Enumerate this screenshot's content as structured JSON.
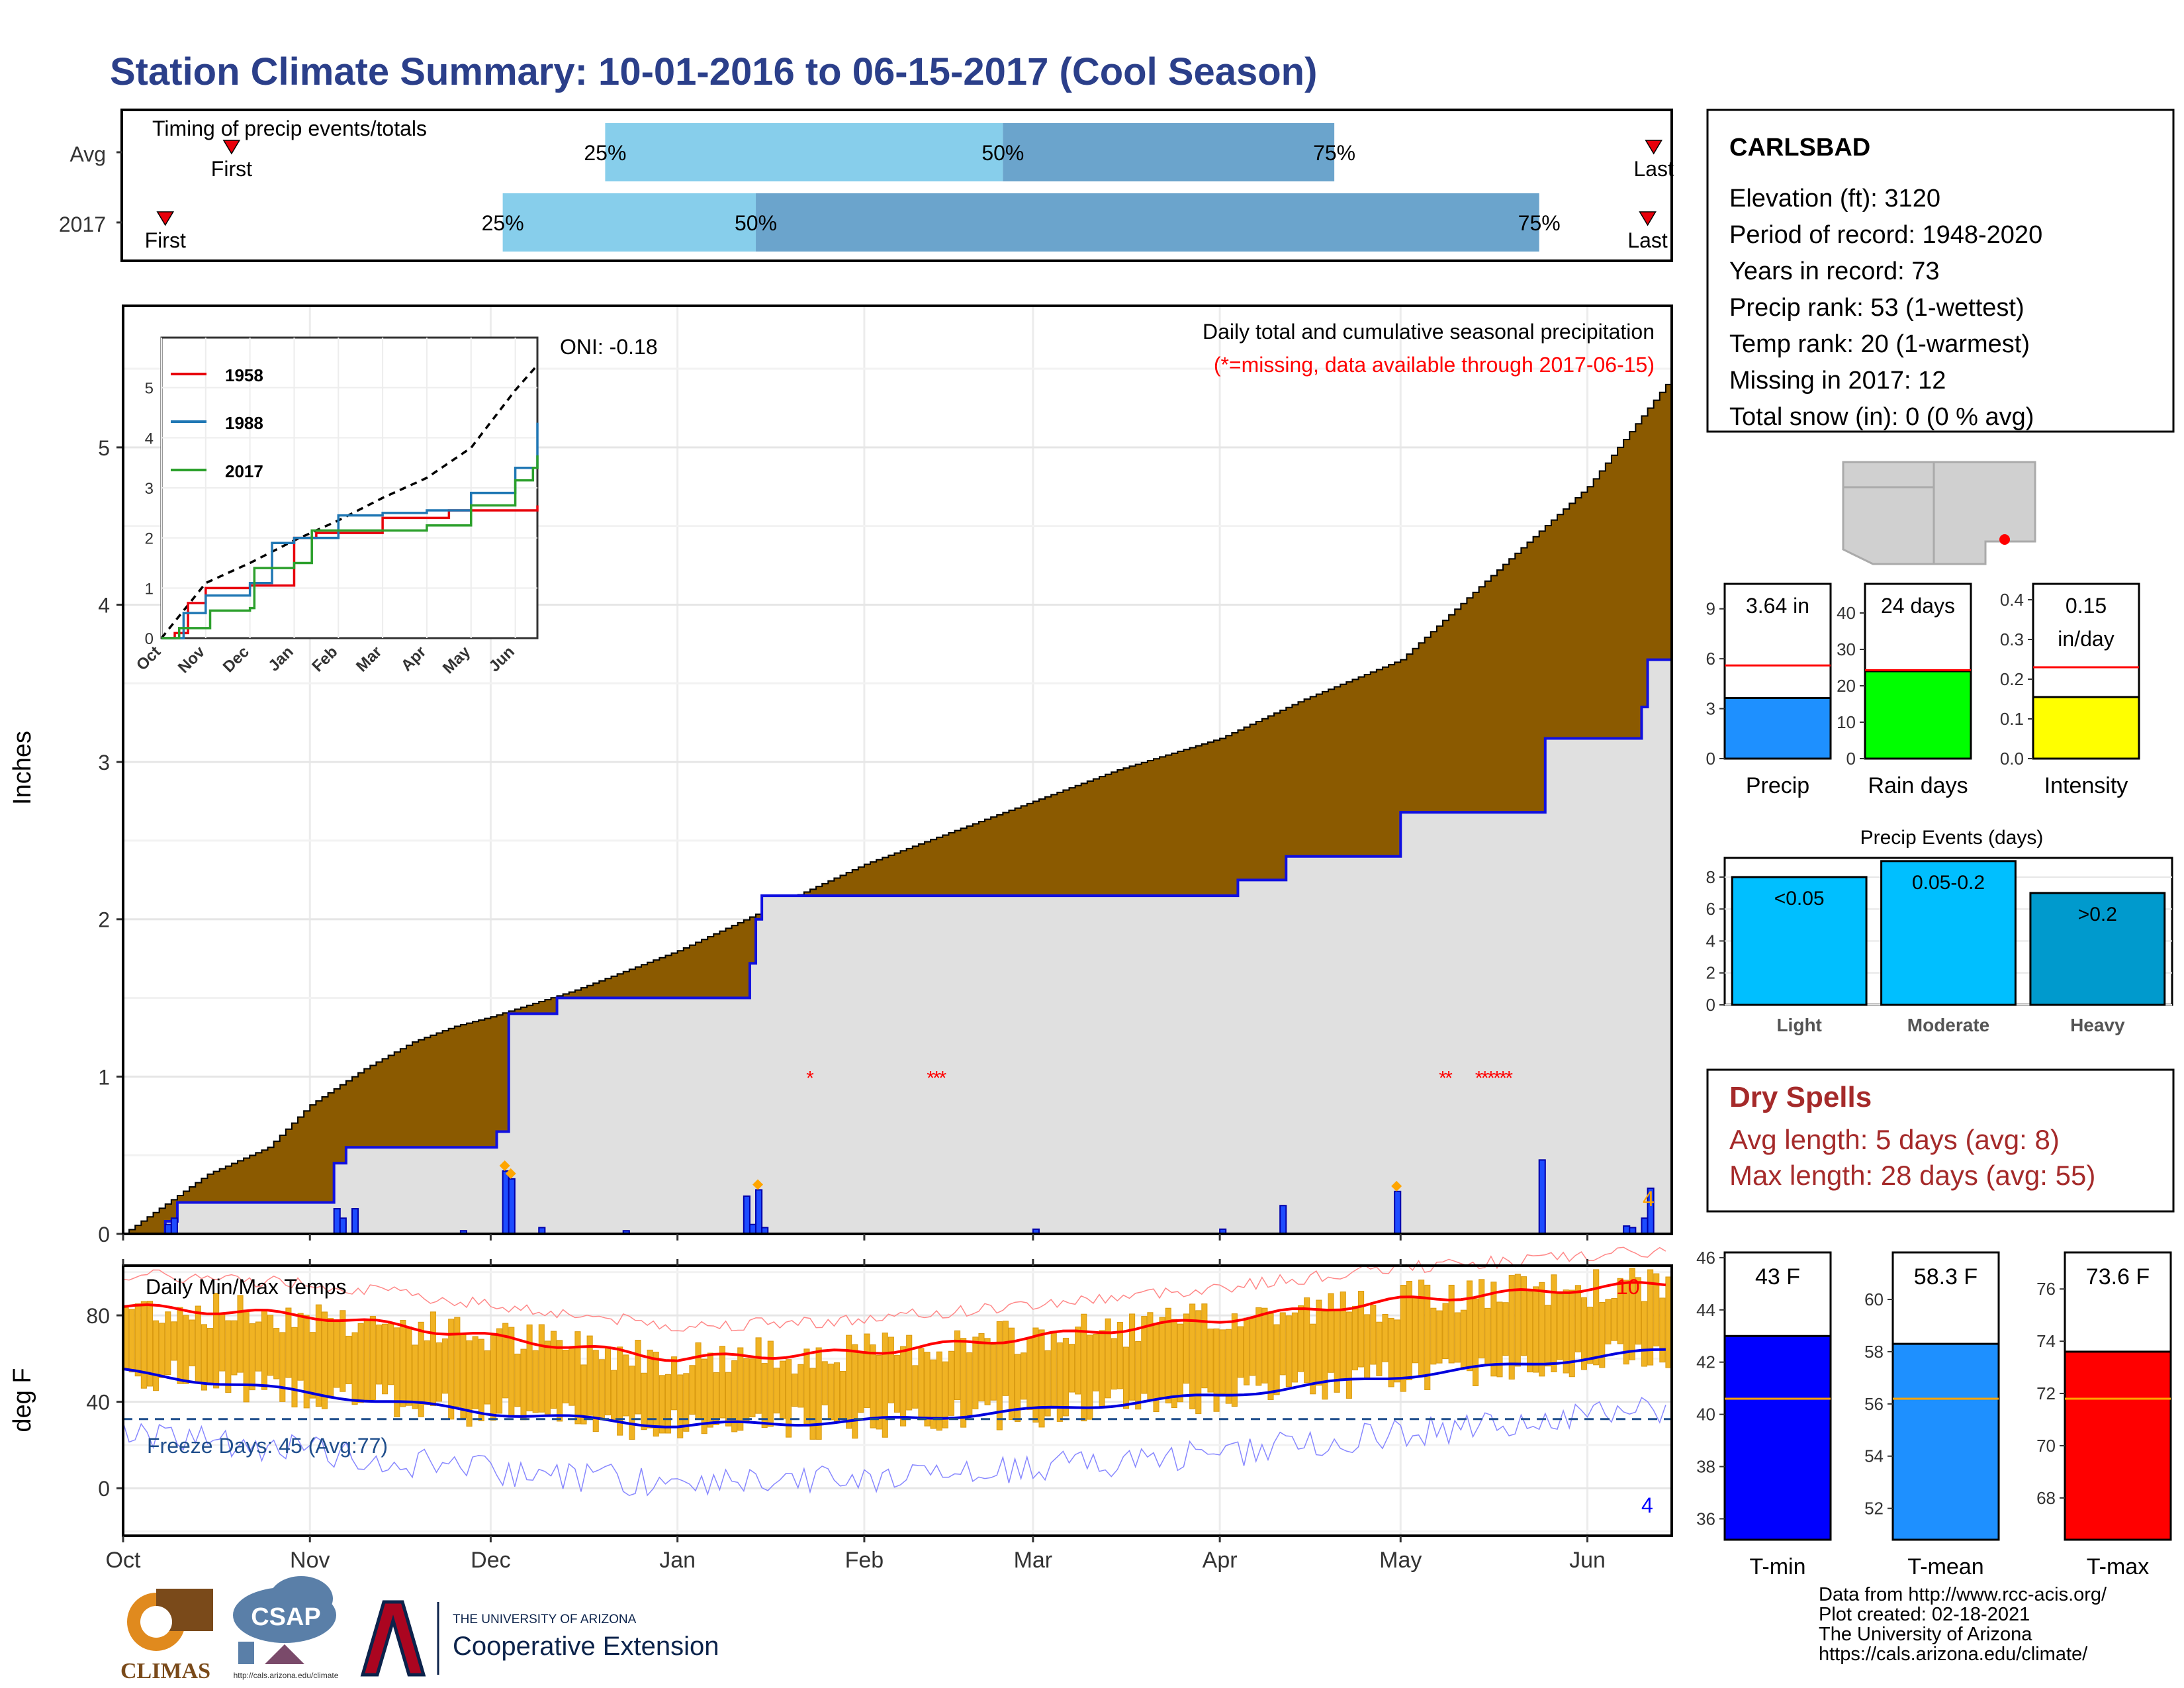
{
  "page": {
    "title": "Station Climate Summary: 10-01-2016 to 06-15-2017 (Cool Season)"
  },
  "timing_panel": {
    "title": "Timing of precip events/totals",
    "row_labels": [
      "Avg",
      "2017"
    ],
    "first_label": "First",
    "last_label": "Last",
    "pct_labels": [
      "25%",
      "50%",
      "75%"
    ],
    "avg": {
      "first": "2016-10-19",
      "p25": "2016-12-20",
      "p50": "2017-02-24",
      "p75": "2017-04-20",
      "last": "2017-06-12"
    },
    "y2017": {
      "first": "2016-10-08",
      "p25": "2016-12-03",
      "p50": "2017-01-14",
      "p75": "2017-05-24",
      "last": "2017-06-11"
    },
    "colors": {
      "light": "#87ceeb",
      "dark": "#6ba4cc",
      "marker": "#e8000b"
    }
  },
  "station": {
    "name": "CARLSBAD",
    "lines": [
      "Elevation (ft): 3120",
      "Period of record: 1948-2020",
      "Years in record: 73",
      "Precip rank: 53 (1-wettest)",
      "Temp rank: 20 (1-warmest)",
      "Missing in 2017: 12",
      "Total snow (in): 0 (0 % avg)"
    ]
  },
  "precip_panel": {
    "ylabel": "Inches",
    "oni": "ONI: -0.18",
    "caption": "Daily total and cumulative seasonal precipitation",
    "missing_note": "(*=missing, data available through 2017-06-15)",
    "count_label": "4",
    "colors": {
      "avg_fill": "#8b5a00",
      "obs_fill": "#e0e0e0",
      "obs_line": "#1010e0",
      "missing": "#ff0000",
      "marker": "#ffa500"
    }
  },
  "inset": {
    "legend": [
      {
        "name": "1958",
        "color": "#e8000b"
      },
      {
        "name": "1988",
        "color": "#1f77b4"
      },
      {
        "name": "2017",
        "color": "#2ca02c"
      }
    ],
    "x_ticks": [
      "Oct",
      "Nov",
      "Dec",
      "Jan",
      "Feb",
      "Mar",
      "Apr",
      "May",
      "Jun"
    ],
    "y_ticks": [
      "0",
      "1",
      "2",
      "3",
      "4",
      "5"
    ]
  },
  "temp_panel": {
    "ylabel": "deg F",
    "title": "Daily Min/Max Temps",
    "freeze_label": "Freeze Days: 45 (Avg:77)",
    "count_top": "10",
    "count_bottom": "4",
    "colors": {
      "bar": "#f0b323",
      "max_avg": "#ff0000",
      "min_avg": "#0000dd",
      "max_rec": "#ff8888",
      "min_rec": "#8888ff",
      "freeze": "#1f4e8c"
    }
  },
  "month_ticks": [
    "Oct",
    "Nov",
    "Dec",
    "Jan",
    "Feb",
    "Mar",
    "Apr",
    "May",
    "Jun"
  ],
  "mini_bars": [
    {
      "value_label": "3.64 in",
      "name": "Precip",
      "value": 3.64,
      "avg": 5.6,
      "ymax": 10.5,
      "ticks": [
        "0",
        "3",
        "6",
        "9"
      ],
      "tick_vals": [
        0,
        3,
        6,
        9
      ],
      "color": "#1e90ff"
    },
    {
      "value_label": "24 days",
      "name": "Rain days",
      "value": 24,
      "avg": 24.3,
      "ymax": 48,
      "ticks": [
        "0",
        "10",
        "20",
        "30",
        "40"
      ],
      "tick_vals": [
        0,
        10,
        20,
        30,
        40
      ],
      "color": "#00ff00"
    },
    {
      "value_label": "0.15\nin/day",
      "name": "Intensity",
      "value": 0.155,
      "avg": 0.23,
      "ymax": 0.44,
      "ticks": [
        "0.0",
        "0.1",
        "0.2",
        "0.3",
        "0.4"
      ],
      "tick_vals": [
        0,
        0.1,
        0.2,
        0.3,
        0.4
      ],
      "color": "#ffff00"
    }
  ],
  "precip_events": {
    "title": "Precip Events (days)",
    "categories": [
      "Light",
      "Moderate",
      "Heavy"
    ],
    "bar_labels": [
      "<0.05",
      "0.05-0.2",
      ">0.2"
    ],
    "values": [
      8,
      9,
      7
    ],
    "colors": [
      "#00bfff",
      "#00bfff",
      "#009acd"
    ],
    "ticks": [
      "0",
      "2",
      "4",
      "6",
      "8"
    ],
    "tick_vals": [
      0,
      2,
      4,
      6,
      8
    ],
    "ymax": 9.2
  },
  "dry_spells": {
    "title": "Dry Spells",
    "lines": [
      "Avg length: 5 days (avg: 8)",
      "Max length: 28 days (avg: 55)"
    ],
    "color": "#a52a2a"
  },
  "temp_bars": [
    {
      "value_label": "43 F",
      "name": "T-min",
      "value": 43.0,
      "avg": 40.6,
      "ymin": 35.2,
      "ymax": 46.2,
      "ticks": [
        "36",
        "38",
        "40",
        "42",
        "44",
        "46"
      ],
      "tick_vals": [
        36,
        38,
        40,
        42,
        44,
        46
      ],
      "color": "#0000ff"
    },
    {
      "value_label": "58.3 F",
      "name": "T-mean",
      "value": 58.3,
      "avg": 56.2,
      "ymin": 50.8,
      "ymax": 61.8,
      "ticks": [
        "52",
        "54",
        "56",
        "58",
        "60"
      ],
      "tick_vals": [
        52,
        54,
        56,
        58,
        60
      ],
      "color": "#1e90ff"
    },
    {
      "value_label": "73.6 F",
      "name": "T-max",
      "value": 73.6,
      "avg": 71.8,
      "ymin": 66.4,
      "ymax": 77.4,
      "ticks": [
        "68",
        "70",
        "72",
        "74",
        "76"
      ],
      "tick_vals": [
        68,
        70,
        72,
        74,
        76
      ],
      "color": "#ff0000"
    }
  ],
  "footer": {
    "credits": [
      "Data from http://www.rcc-acis.org/",
      "Plot created: 02-18-2021",
      "The University of Arizona",
      "https://cals.arizona.edu/climate/"
    ],
    "logos": {
      "climas": "CLIMAS",
      "csap": "CSAP",
      "csap_url": "http://cals.arizona.edu/climate",
      "ua_small": "THE UNIVERSITY OF ARIZONA",
      "ua_big": "Cooperative Extension"
    }
  },
  "chart_data": [
    {
      "type": "area",
      "title": "Daily total and cumulative seasonal precipitation",
      "ylabel": "Inches",
      "ylim": [
        0,
        5.9
      ],
      "x_range": [
        "2016-10-01",
        "2017-06-15"
      ],
      "grid": true,
      "series": [
        {
          "name": "avg",
          "points": [
            [
              "2016-10-01",
              0.0
            ],
            [
              "2016-10-15",
              0.38
            ],
            [
              "2016-10-25",
              0.55
            ],
            [
              "2016-11-01",
              0.82
            ],
            [
              "2016-11-10",
              1.05
            ],
            [
              "2016-11-18",
              1.22
            ],
            [
              "2016-11-25",
              1.32
            ],
            [
              "2016-12-01",
              1.38
            ],
            [
              "2016-12-15",
              1.55
            ],
            [
              "2017-01-01",
              1.8
            ],
            [
              "2017-01-15",
              2.05
            ],
            [
              "2017-02-01",
              2.35
            ],
            [
              "2017-02-15",
              2.55
            ],
            [
              "2017-03-01",
              2.75
            ],
            [
              "2017-03-15",
              2.95
            ],
            [
              "2017-04-01",
              3.15
            ],
            [
              "2017-04-15",
              3.4
            ],
            [
              "2017-05-01",
              3.65
            ],
            [
              "2017-05-15",
              4.15
            ],
            [
              "2017-06-01",
              4.75
            ],
            [
              "2017-06-15",
              5.45
            ]
          ]
        },
        {
          "name": "2017",
          "points": [
            [
              "2016-10-01",
              0.0
            ],
            [
              "2016-10-08",
              0.08
            ],
            [
              "2016-10-10",
              0.2
            ],
            [
              "2016-11-03",
              0.2
            ],
            [
              "2016-11-05",
              0.45
            ],
            [
              "2016-11-07",
              0.55
            ],
            [
              "2016-12-01",
              0.55
            ],
            [
              "2016-12-02",
              0.65
            ],
            [
              "2016-12-04",
              1.4
            ],
            [
              "2016-12-12",
              1.5
            ],
            [
              "2017-01-13",
              1.72
            ],
            [
              "2017-01-14",
              2.0
            ],
            [
              "2017-01-15",
              2.15
            ],
            [
              "2017-02-22",
              2.15
            ],
            [
              "2017-03-18",
              2.15
            ],
            [
              "2017-04-04",
              2.25
            ],
            [
              "2017-04-12",
              2.4
            ],
            [
              "2017-04-30",
              2.4
            ],
            [
              "2017-05-01",
              2.68
            ],
            [
              "2017-05-24",
              2.68
            ],
            [
              "2017-05-25",
              3.15
            ],
            [
              "2017-06-08",
              3.15
            ],
            [
              "2017-06-10",
              3.35
            ],
            [
              "2017-06-11",
              3.65
            ],
            [
              "2017-06-15",
              3.65
            ]
          ]
        }
      ],
      "daily_bars": [
        [
          "2016-10-08",
          0.06
        ],
        [
          "2016-10-09",
          0.1
        ],
        [
          "2016-11-05",
          0.16
        ],
        [
          "2016-11-06",
          0.1
        ],
        [
          "2016-11-08",
          0.16
        ],
        [
          "2016-11-26",
          0.02
        ],
        [
          "2016-12-03",
          0.4
        ],
        [
          "2016-12-04",
          0.35
        ],
        [
          "2016-12-09",
          0.04
        ],
        [
          "2016-12-23",
          0.02
        ],
        [
          "2017-01-12",
          0.24
        ],
        [
          "2017-01-13",
          0.06
        ],
        [
          "2017-01-14",
          0.28
        ],
        [
          "2017-01-15",
          0.04
        ],
        [
          "2017-03-01",
          0.03
        ],
        [
          "2017-04-01",
          0.03
        ],
        [
          "2017-04-11",
          0.18
        ],
        [
          "2017-04-30",
          0.27
        ],
        [
          "2017-05-24",
          0.47
        ],
        [
          "2017-06-07",
          0.05
        ],
        [
          "2017-06-08",
          0.04
        ],
        [
          "2017-06-10",
          0.1
        ],
        [
          "2017-06-11",
          0.29
        ]
      ],
      "missing_days": [
        "2017-01-23",
        "2017-02-12",
        "2017-02-13",
        "2017-02-14",
        "2017-05-08",
        "2017-05-09",
        "2017-05-14",
        "2017-05-15",
        "2017-05-16",
        "2017-05-17",
        "2017-05-18",
        "2017-05-19"
      ]
    },
    {
      "type": "line",
      "title": "",
      "x_ticks": [
        "Oct",
        "Nov",
        "Dec",
        "Jan",
        "Feb",
        "Mar",
        "Apr",
        "May",
        "Jun"
      ],
      "ylim": [
        0,
        6
      ],
      "series": [
        {
          "name": "avg",
          "points": [
            [
              0,
              0
            ],
            [
              1,
              1.1
            ],
            [
              2,
              1.5
            ],
            [
              3,
              1.95
            ],
            [
              4,
              2.35
            ],
            [
              5,
              2.8
            ],
            [
              6,
              3.2
            ],
            [
              7,
              3.8
            ],
            [
              8,
              4.95
            ],
            [
              8.5,
              5.45
            ]
          ]
        },
        {
          "name": "1958",
          "points": [
            [
              0,
              0
            ],
            [
              0.3,
              0.1
            ],
            [
              0.6,
              0.7
            ],
            [
              1,
              1.0
            ],
            [
              1.5,
              1.0
            ],
            [
              2,
              1.05
            ],
            [
              3,
              2.0
            ],
            [
              3.5,
              2.1
            ],
            [
              5,
              2.4
            ],
            [
              6.5,
              2.55
            ],
            [
              7.5,
              2.55
            ],
            [
              8.5,
              2.65
            ]
          ]
        },
        {
          "name": "1988",
          "points": [
            [
              0,
              0
            ],
            [
              0.5,
              0.5
            ],
            [
              1,
              0.85
            ],
            [
              2,
              1.1
            ],
            [
              2.5,
              1.9
            ],
            [
              3,
              2.0
            ],
            [
              4,
              2.45
            ],
            [
              5,
              2.5
            ],
            [
              6,
              2.55
            ],
            [
              7,
              2.9
            ],
            [
              8,
              3.4
            ],
            [
              8.3,
              3.4
            ],
            [
              8.5,
              4.3
            ]
          ]
        },
        {
          "name": "2017",
          "points": [
            [
              0,
              0
            ],
            [
              0.4,
              0.2
            ],
            [
              1.1,
              0.55
            ],
            [
              2,
              0.6
            ],
            [
              2.1,
              1.4
            ],
            [
              3,
              1.5
            ],
            [
              3.4,
              2.15
            ],
            [
              6,
              2.25
            ],
            [
              7,
              2.65
            ],
            [
              8,
              3.15
            ],
            [
              8.4,
              3.4
            ],
            [
              8.5,
              3.65
            ]
          ]
        }
      ]
    },
    {
      "type": "line",
      "title": "Daily Min/Max Temps",
      "ylabel": "deg F",
      "ylim": [
        -22,
        103
      ],
      "series": [
        {
          "name": "max_avg",
          "points": [
            [
              "2016-10-01",
              84
            ],
            [
              "2016-11-01",
              80
            ],
            [
              "2016-12-01",
              70
            ],
            [
              "2017-01-01",
              60
            ],
            [
              "2017-02-01",
              63
            ],
            [
              "2017-03-01",
              70
            ],
            [
              "2017-04-01",
              78
            ],
            [
              "2017-05-01",
              87
            ],
            [
              "2017-06-15",
              95
            ]
          ]
        },
        {
          "name": "min_avg",
          "points": [
            [
              "2016-10-01",
              54
            ],
            [
              "2016-11-01",
              44
            ],
            [
              "2016-12-01",
              35
            ],
            [
              "2017-01-01",
              29
            ],
            [
              "2017-02-01",
              31
            ],
            [
              "2017-03-01",
              36
            ],
            [
              "2017-04-01",
              43
            ],
            [
              "2017-05-01",
              52
            ],
            [
              "2017-06-15",
              64
            ]
          ]
        }
      ],
      "freeze_line": 32,
      "ticks": [
        0,
        40,
        80
      ]
    },
    {
      "type": "bar",
      "title": "Precip",
      "categories": [
        "Precip"
      ],
      "values": [
        3.64
      ],
      "avg": 5.6,
      "unit": "in"
    },
    {
      "type": "bar",
      "title": "Rain days",
      "categories": [
        "Rain days"
      ],
      "values": [
        24
      ],
      "avg": 24.3,
      "unit": "days"
    },
    {
      "type": "bar",
      "title": "Intensity",
      "categories": [
        "Intensity"
      ],
      "values": [
        0.15
      ],
      "avg": 0.23,
      "unit": "in/day"
    },
    {
      "type": "bar",
      "title": "Precip Events (days)",
      "categories": [
        "Light",
        "Moderate",
        "Heavy"
      ],
      "values": [
        8,
        9,
        7
      ]
    },
    {
      "type": "bar",
      "title": "T-min",
      "categories": [
        "T-min"
      ],
      "values": [
        43.0
      ],
      "avg": 40.6,
      "unit": "F"
    },
    {
      "type": "bar",
      "title": "T-mean",
      "categories": [
        "T-mean"
      ],
      "values": [
        58.3
      ],
      "avg": 56.2,
      "unit": "F"
    },
    {
      "type": "bar",
      "title": "T-max",
      "categories": [
        "T-max"
      ],
      "values": [
        73.6
      ],
      "avg": 71.8,
      "unit": "F"
    }
  ]
}
